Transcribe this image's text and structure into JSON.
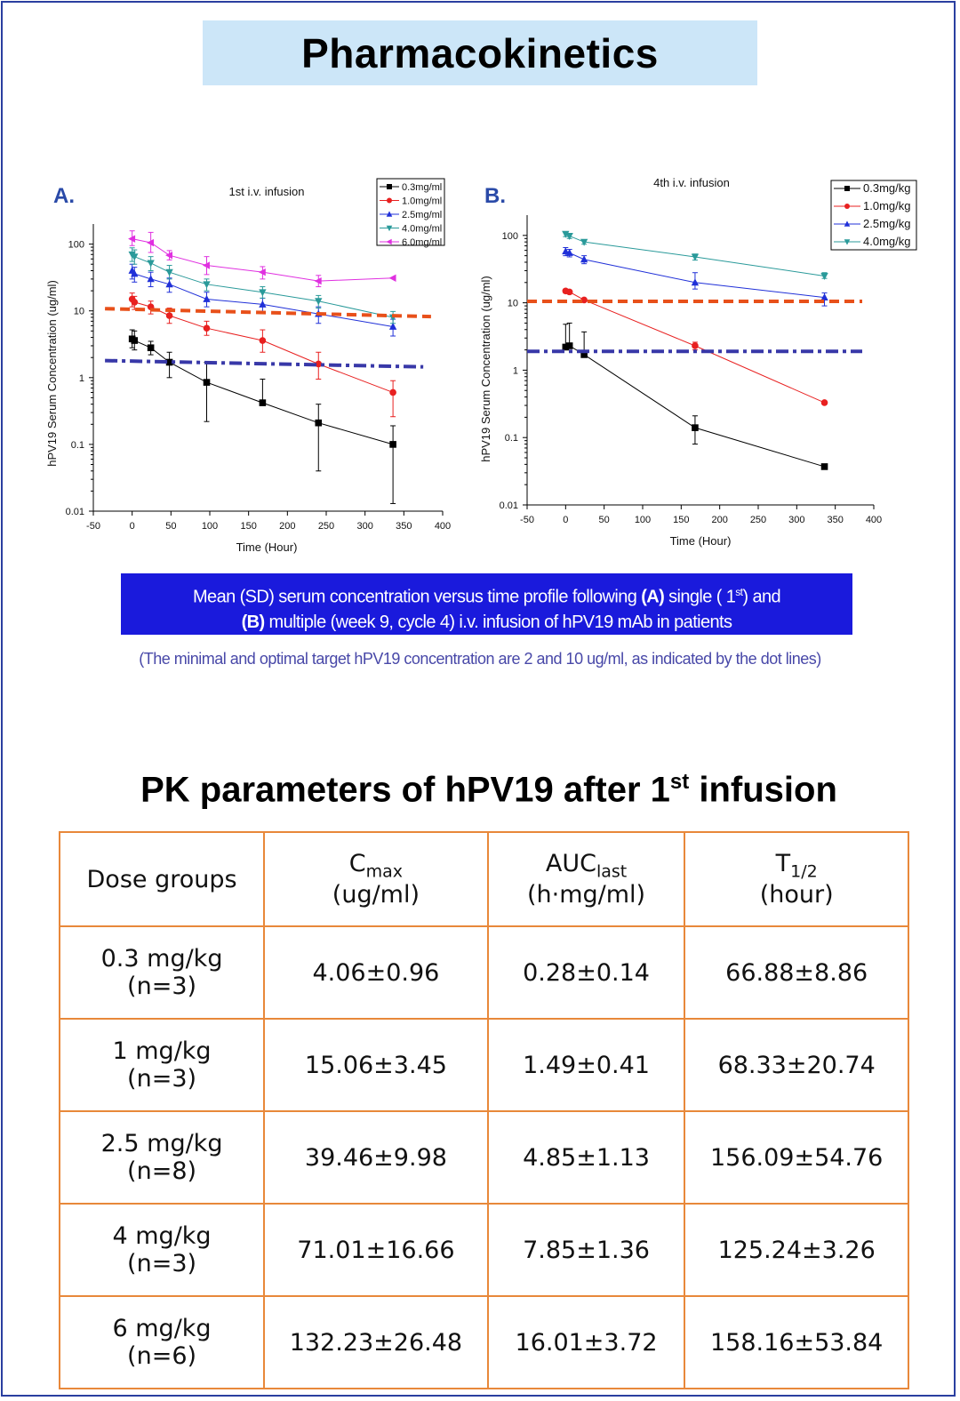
{
  "page_title": "Pharmacokinetics",
  "charts_caption": {
    "line1_prefix": "Mean (SD) serum concentration versus time profile following ",
    "line1_a": "(A)",
    "line1_mid": " single ( 1",
    "line1_sup": "st",
    "line1_suffix": ")  and",
    "line2_b": "(B)",
    "line2_rest": " multiple (week 9, cycle 4) i.v. infusion of hPV19 mAb in patients"
  },
  "note": "(The minimal and optimal target hPV19 concentration are 2 and 10 ug/ml, as indicated by the dot lines)",
  "table_title_prefix": "PK parameters of hPV19 after 1",
  "table_title_sup": "st",
  "table_title_suffix": " infusion",
  "table": {
    "headers": [
      {
        "main": "Dose groups",
        "sub": "",
        "unit": ""
      },
      {
        "main": "C",
        "sub": "max",
        "unit": "(ug/ml)"
      },
      {
        "main": "AUC",
        "sub": "last",
        "unit": "(h·mg/ml)"
      },
      {
        "main": "T",
        "sub": "1/2",
        "unit": "(hour)"
      }
    ],
    "rows": [
      {
        "dose": "0.3 mg/kg",
        "n": "(n=3)",
        "cmax": "4.06±0.96",
        "auc": "0.28±0.14",
        "t12": "66.88±8.86"
      },
      {
        "dose": "1 mg/kg",
        "n": "(n=3)",
        "cmax": "15.06±3.45",
        "auc": "1.49±0.41",
        "t12": "68.33±20.74"
      },
      {
        "dose": "2.5 mg/kg",
        "n": "(n=8)",
        "cmax": "39.46±9.98",
        "auc": "4.85±1.13",
        "t12": "156.09±54.76"
      },
      {
        "dose": "4 mg/kg",
        "n": "(n=3)",
        "cmax": "71.01±16.66",
        "auc": "7.85±1.36",
        "t12": "125.24±3.26"
      },
      {
        "dose": "6 mg/kg",
        "n": "(n=6)",
        "cmax": "132.23±26.48",
        "auc": "16.01±3.72",
        "t12": "158.16±53.84"
      }
    ]
  },
  "chart_data": [
    {
      "type": "line",
      "panel_label": "A.",
      "title": "1st i.v. infusion",
      "xlabel": "Time (Hour)",
      "ylabel": "hPV19 Serum Concentration (ug/ml)",
      "xlim": [
        -50,
        400
      ],
      "ylim": [
        0.01,
        200
      ],
      "yscale": "log",
      "xticks": [
        -50,
        0,
        50,
        100,
        150,
        200,
        250,
        300,
        350,
        400
      ],
      "yticks": [
        0.01,
        0.1,
        1,
        10,
        100
      ],
      "ytick_labels": [
        "0.01",
        "0.1",
        "1",
        "10",
        "100"
      ],
      "legend_position": "top-right",
      "target_lines": [
        {
          "type": "dashed",
          "color": "#e8501a",
          "x": [
            -35,
            385
          ],
          "y": [
            10.8,
            8.2
          ]
        },
        {
          "type": "dash-dot",
          "color": "#3838a8",
          "x": [
            -35,
            375
          ],
          "y": [
            1.8,
            1.45
          ]
        }
      ],
      "series": [
        {
          "name": "0.3mg/ml",
          "color": "#000000",
          "marker": "square",
          "x": [
            0,
            3,
            24,
            48,
            96,
            168,
            240,
            336
          ],
          "y": [
            3.8,
            3.6,
            2.8,
            1.7,
            0.85,
            0.42,
            0.21,
            0.1
          ],
          "err_low": [
            2.8,
            2.6,
            2.2,
            1.0,
            0.22,
            0.42,
            0.04,
            0.013
          ],
          "err_high": [
            5.2,
            5.0,
            3.5,
            2.4,
            1.7,
            0.95,
            0.4,
            0.19
          ]
        },
        {
          "name": "1.0mg/ml",
          "color": "#e82020",
          "marker": "circle",
          "x": [
            0,
            3,
            24,
            48,
            96,
            168,
            240,
            336
          ],
          "y": [
            15,
            13.5,
            11.5,
            8.5,
            5.5,
            3.6,
            1.6,
            0.6
          ],
          "err_low": [
            11.5,
            10.5,
            9.0,
            6.5,
            4.3,
            2.4,
            0.95,
            0.26
          ],
          "err_high": [
            18.5,
            16.5,
            14.0,
            11.0,
            7.0,
            5.2,
            2.4,
            0.9
          ]
        },
        {
          "name": "2.5mg/ml",
          "color": "#2030d8",
          "marker": "triangle-up",
          "x": [
            0,
            3,
            24,
            48,
            96,
            168,
            240,
            336
          ],
          "y": [
            40,
            36,
            30,
            25,
            15,
            12.5,
            9,
            5.8
          ],
          "err_low": [
            30,
            27,
            23,
            19,
            11.5,
            9.5,
            6.5,
            4.2
          ],
          "err_high": [
            50,
            45,
            38,
            31,
            19,
            15.5,
            11.5,
            7.5
          ]
        },
        {
          "name": "4.0mg/ml",
          "color": "#2a9a9a",
          "marker": "triangle-down",
          "x": [
            0,
            3,
            24,
            48,
            96,
            168,
            240,
            336
          ],
          "y": [
            70,
            65,
            52,
            38,
            25,
            19,
            14,
            8
          ],
          "err_low": [
            55,
            50,
            40,
            30,
            20,
            15.5,
            11,
            6.5
          ],
          "err_high": [
            88,
            82,
            65,
            48,
            30,
            23,
            17,
            9.8
          ]
        },
        {
          "name": "6.0mg/ml",
          "color": "#e030e0",
          "marker": "triangle-left",
          "x": [
            0,
            24,
            48,
            96,
            168,
            240,
            336
          ],
          "y": [
            120,
            105,
            68,
            48,
            38,
            28,
            31
          ],
          "err_low": [
            95,
            75,
            58,
            35,
            30,
            23,
            31
          ],
          "err_high": [
            158,
            150,
            80,
            65,
            46,
            34,
            31
          ]
        }
      ]
    },
    {
      "type": "line",
      "panel_label": "B.",
      "title": "4th i.v. infusion",
      "xlabel": "Time (Hour)",
      "ylabel": "hPV19 Serum Concentration (ug/ml)",
      "xlim": [
        -50,
        400
      ],
      "ylim": [
        0.01,
        200
      ],
      "yscale": "log",
      "xticks": [
        -50,
        0,
        50,
        100,
        150,
        200,
        250,
        300,
        350,
        400
      ],
      "yticks": [
        0.01,
        0.1,
        1,
        10,
        100
      ],
      "ytick_labels": [
        "0.01",
        "0.1",
        "1",
        "10",
        "100"
      ],
      "legend_position": "top-right",
      "target_lines": [
        {
          "type": "dashed",
          "color": "#e8501a",
          "x": [
            -50,
            385
          ],
          "y": [
            10.5,
            10.5
          ]
        },
        {
          "type": "dash-dot",
          "color": "#3838a8",
          "x": [
            -50,
            385
          ],
          "y": [
            1.9,
            1.9
          ]
        }
      ],
      "series": [
        {
          "name": "0.3mg/kg",
          "color": "#000000",
          "marker": "square",
          "x": [
            0,
            5,
            24,
            168,
            336
          ],
          "y": [
            2.2,
            2.3,
            1.7,
            0.14,
            0.037
          ],
          "err_low": [
            2.2,
            2.3,
            1.7,
            0.08,
            0.037
          ],
          "err_high": [
            4.8,
            5.0,
            3.7,
            0.21,
            0.037
          ]
        },
        {
          "name": "1.0mg/kg",
          "color": "#e82020",
          "marker": "circle",
          "x": [
            0,
            5,
            24,
            168,
            336
          ],
          "y": [
            15,
            14.5,
            11,
            2.3,
            0.33
          ],
          "err_low": [
            14,
            13.8,
            10.5,
            2.0,
            0.33
          ],
          "err_high": [
            15.8,
            15.2,
            11.5,
            2.6,
            0.33
          ]
        },
        {
          "name": "2.5mg/kg",
          "color": "#2030d8",
          "marker": "triangle-up",
          "x": [
            0,
            5,
            24,
            168,
            336
          ],
          "y": [
            58,
            55,
            44,
            20,
            12
          ],
          "err_low": [
            50,
            48,
            38,
            16,
            9
          ],
          "err_high": [
            66,
            62,
            50,
            28,
            14
          ]
        },
        {
          "name": "4.0mg/kg",
          "color": "#2a9a9a",
          "marker": "triangle-down",
          "x": [
            0,
            5,
            24,
            168,
            336
          ],
          "y": [
            105,
            98,
            80,
            48,
            25
          ],
          "err_low": [
            96,
            90,
            74,
            43,
            23
          ],
          "err_high": [
            114,
            106,
            86,
            53,
            28
          ]
        }
      ]
    }
  ]
}
